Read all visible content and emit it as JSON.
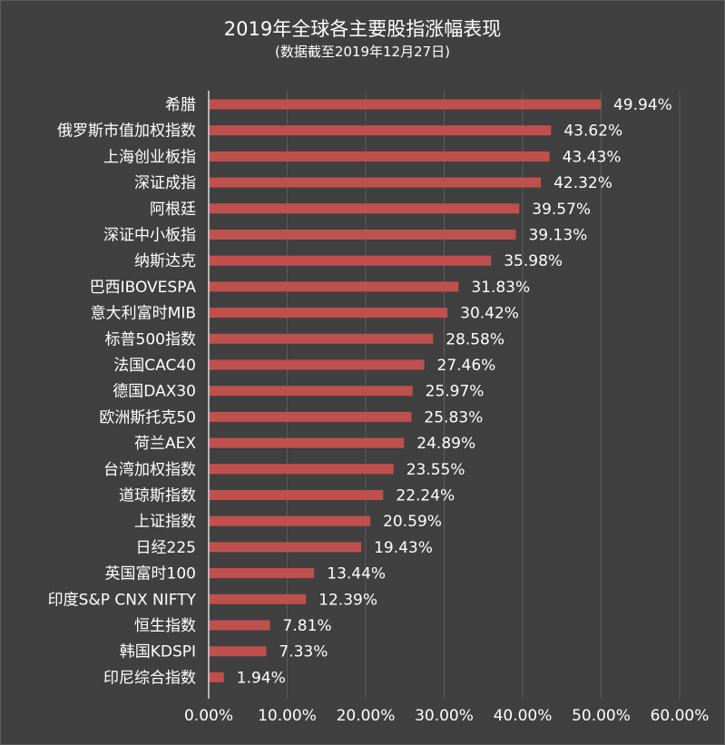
{
  "chart_data": {
    "type": "bar",
    "orientation": "horizontal",
    "title": "2019年全球各主要股指涨幅表现",
    "subtitle": "(数据截至2019年12月27日)",
    "categories": [
      "希腊",
      "俄罗斯市值加权指数",
      "上海创业板指",
      "深证成指",
      "阿根廷",
      "深证中小板指",
      "纳斯达克",
      "巴西IBOVESPA",
      "意大利富时MIB",
      "标普500指数",
      "法国CAC40",
      "德国DAX30",
      "欧洲斯托克50",
      "荷兰AEX",
      "台湾加权指数",
      "道琼斯指数",
      "上证指数",
      "日经225",
      "英国富时100",
      "印度S&P CNX NIFTY",
      "恒生指数",
      "韩国KDSPI",
      "印尼综合指数"
    ],
    "values": [
      49.94,
      43.62,
      43.43,
      42.32,
      39.57,
      39.13,
      35.98,
      31.83,
      30.42,
      28.58,
      27.46,
      25.97,
      25.83,
      24.89,
      23.55,
      22.24,
      20.59,
      19.43,
      13.44,
      12.39,
      7.81,
      7.33,
      1.94
    ],
    "value_labels": [
      "49.94%",
      "43.62%",
      "43.43%",
      "42.32%",
      "39.57%",
      "39.13%",
      "35.98%",
      "31.83%",
      "30.42%",
      "28.58%",
      "27.46%",
      "25.97%",
      "25.83%",
      "24.89%",
      "23.55%",
      "22.24%",
      "20.59%",
      "19.43%",
      "13.44%",
      "12.39%",
      "7.81%",
      "7.33%",
      "1.94%"
    ],
    "xlim": [
      0,
      60
    ],
    "xticks": [
      0,
      10,
      20,
      30,
      40,
      50,
      60
    ],
    "xtick_labels": [
      "0.00%",
      "10.00%",
      "20.00%",
      "30.00%",
      "40.00%",
      "50.00%",
      "60.00%"
    ],
    "grid": "vertical",
    "legend": "none",
    "colors": {
      "background": "#404040",
      "bar": "#c0504d",
      "grid": "#5c5c5c",
      "axis": "#d9d9d9",
      "text": "#ffffff"
    }
  }
}
